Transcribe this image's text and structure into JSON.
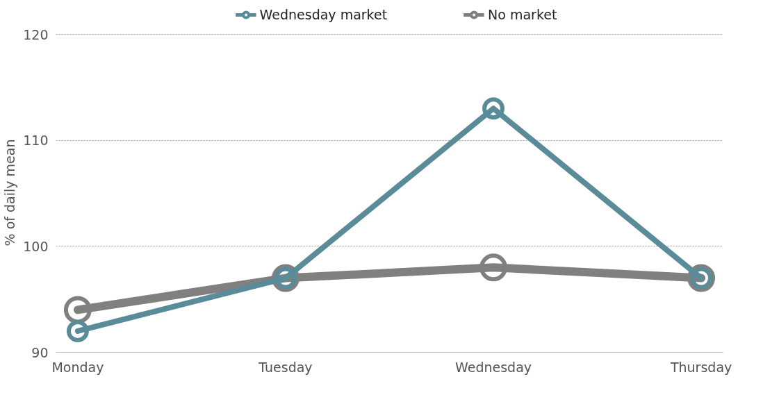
{
  "chart_data": {
    "type": "line",
    "ylabel": "% of daily mean",
    "categories": [
      "Monday",
      "Tuesday",
      "Wednesday",
      "Thursday"
    ],
    "series": [
      {
        "name": "Wednesday market",
        "color": "#5a8b99",
        "values": [
          92,
          97,
          113,
          97
        ]
      },
      {
        "name": "No market",
        "color": "#808080",
        "values": [
          94,
          97,
          98,
          97
        ]
      }
    ],
    "ylim": [
      90,
      120
    ],
    "yticks": [
      90,
      100,
      110,
      120
    ],
    "grid": "y",
    "legend": "top",
    "marker": "circle",
    "line_style": "solid"
  }
}
